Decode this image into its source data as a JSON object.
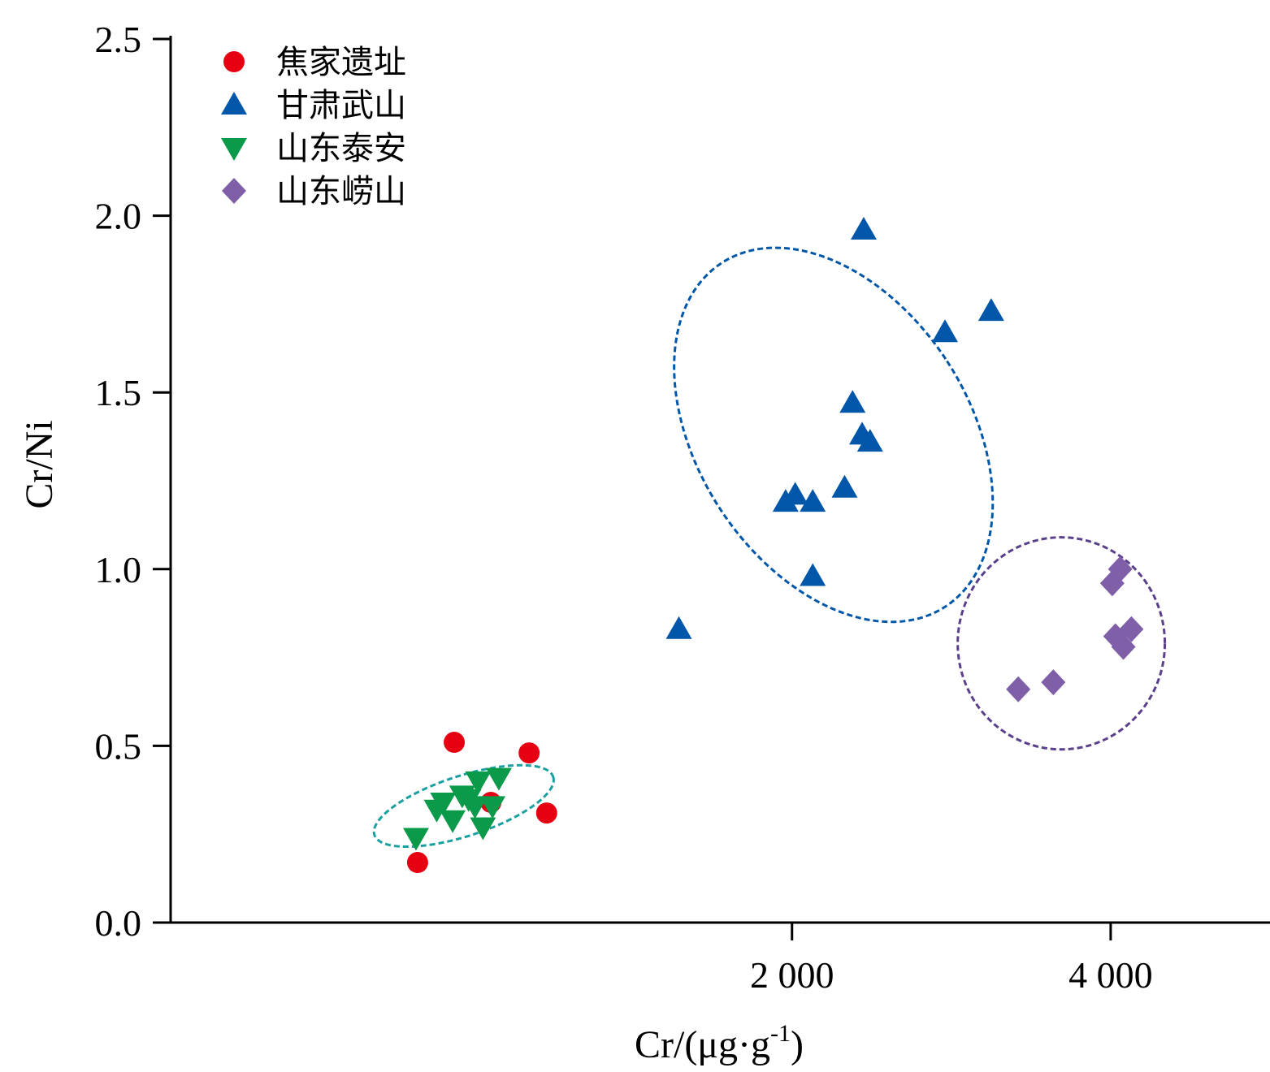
{
  "chart_data": {
    "type": "scatter",
    "xlabel": "Cr/(μg·g-1)",
    "xlabel_parts": {
      "base": "Cr/(μg·g",
      "sup": "-1",
      "close": ")"
    },
    "ylabel": "Cr/Ni",
    "xlim": [
      -1900,
      5000
    ],
    "ylim": [
      0,
      2.5
    ],
    "x_ticks": [
      {
        "value": 2000,
        "label": "2 000"
      },
      {
        "value": 4000,
        "label": "4 000"
      }
    ],
    "y_ticks": [
      {
        "value": 0.0,
        "label": "0.0"
      },
      {
        "value": 0.5,
        "label": "0.5"
      },
      {
        "value": 1.0,
        "label": "1.0"
      },
      {
        "value": 1.5,
        "label": "1.5"
      },
      {
        "value": 2.0,
        "label": "2.0"
      },
      {
        "value": 2.5,
        "label": "2.5"
      }
    ],
    "legend_position": "top-left",
    "grid": false,
    "series": [
      {
        "name": "焦家遗址",
        "marker": "circle",
        "color": "#e60012",
        "points": [
          {
            "x": -350,
            "y": 0.17
          },
          {
            "x": -120,
            "y": 0.51
          },
          {
            "x": 110,
            "y": 0.34
          },
          {
            "x": 350,
            "y": 0.48
          },
          {
            "x": 460,
            "y": 0.31
          }
        ]
      },
      {
        "name": "甘肃武山",
        "marker": "triangle-up",
        "color": "#0056a8",
        "points": [
          {
            "x": 1290,
            "y": 0.83
          },
          {
            "x": 1960,
            "y": 1.19
          },
          {
            "x": 2020,
            "y": 1.21
          },
          {
            "x": 2130,
            "y": 1.19
          },
          {
            "x": 2130,
            "y": 0.98
          },
          {
            "x": 2330,
            "y": 1.23
          },
          {
            "x": 2380,
            "y": 1.47
          },
          {
            "x": 2440,
            "y": 1.38
          },
          {
            "x": 2490,
            "y": 1.36
          },
          {
            "x": 2450,
            "y": 1.96
          },
          {
            "x": 2960,
            "y": 1.67
          },
          {
            "x": 3250,
            "y": 1.73
          }
        ]
      },
      {
        "name": "山东泰安",
        "marker": "triangle-down",
        "color": "#0a9a4a",
        "points": [
          {
            "x": -360,
            "y": 0.24
          },
          {
            "x": -230,
            "y": 0.32
          },
          {
            "x": -190,
            "y": 0.34
          },
          {
            "x": -130,
            "y": 0.29
          },
          {
            "x": -70,
            "y": 0.36
          },
          {
            "x": -30,
            "y": 0.35
          },
          {
            "x": 10,
            "y": 0.33
          },
          {
            "x": 30,
            "y": 0.4
          },
          {
            "x": 60,
            "y": 0.27
          },
          {
            "x": 120,
            "y": 0.33
          },
          {
            "x": 160,
            "y": 0.41
          }
        ]
      },
      {
        "name": "山东崂山",
        "marker": "diamond",
        "color": "#7e5fa8",
        "points": [
          {
            "x": 3420,
            "y": 0.66
          },
          {
            "x": 3640,
            "y": 0.68
          },
          {
            "x": 4010,
            "y": 0.96
          },
          {
            "x": 4060,
            "y": 1.0
          },
          {
            "x": 4030,
            "y": 0.81
          },
          {
            "x": 4080,
            "y": 0.78
          },
          {
            "x": 4130,
            "y": 0.83
          }
        ]
      }
    ],
    "ellipses": [
      {
        "group": "山东泰安",
        "color": "#1aa0a0",
        "cx": -60,
        "cy": 0.33,
        "rx": 1180,
        "ry": 0.085,
        "rotation_deg": -18
      },
      {
        "group": "甘肃武山",
        "color": "#0056a8",
        "cx": 2260,
        "cy": 1.38,
        "rx": 1700,
        "ry": 0.58,
        "rotation_deg": -33
      },
      {
        "group": "山东崂山",
        "color": "#5a3f8a",
        "cx": 3690,
        "cy": 0.79,
        "rx": 1300,
        "ry": 0.3,
        "rotation_deg": 0
      }
    ]
  }
}
